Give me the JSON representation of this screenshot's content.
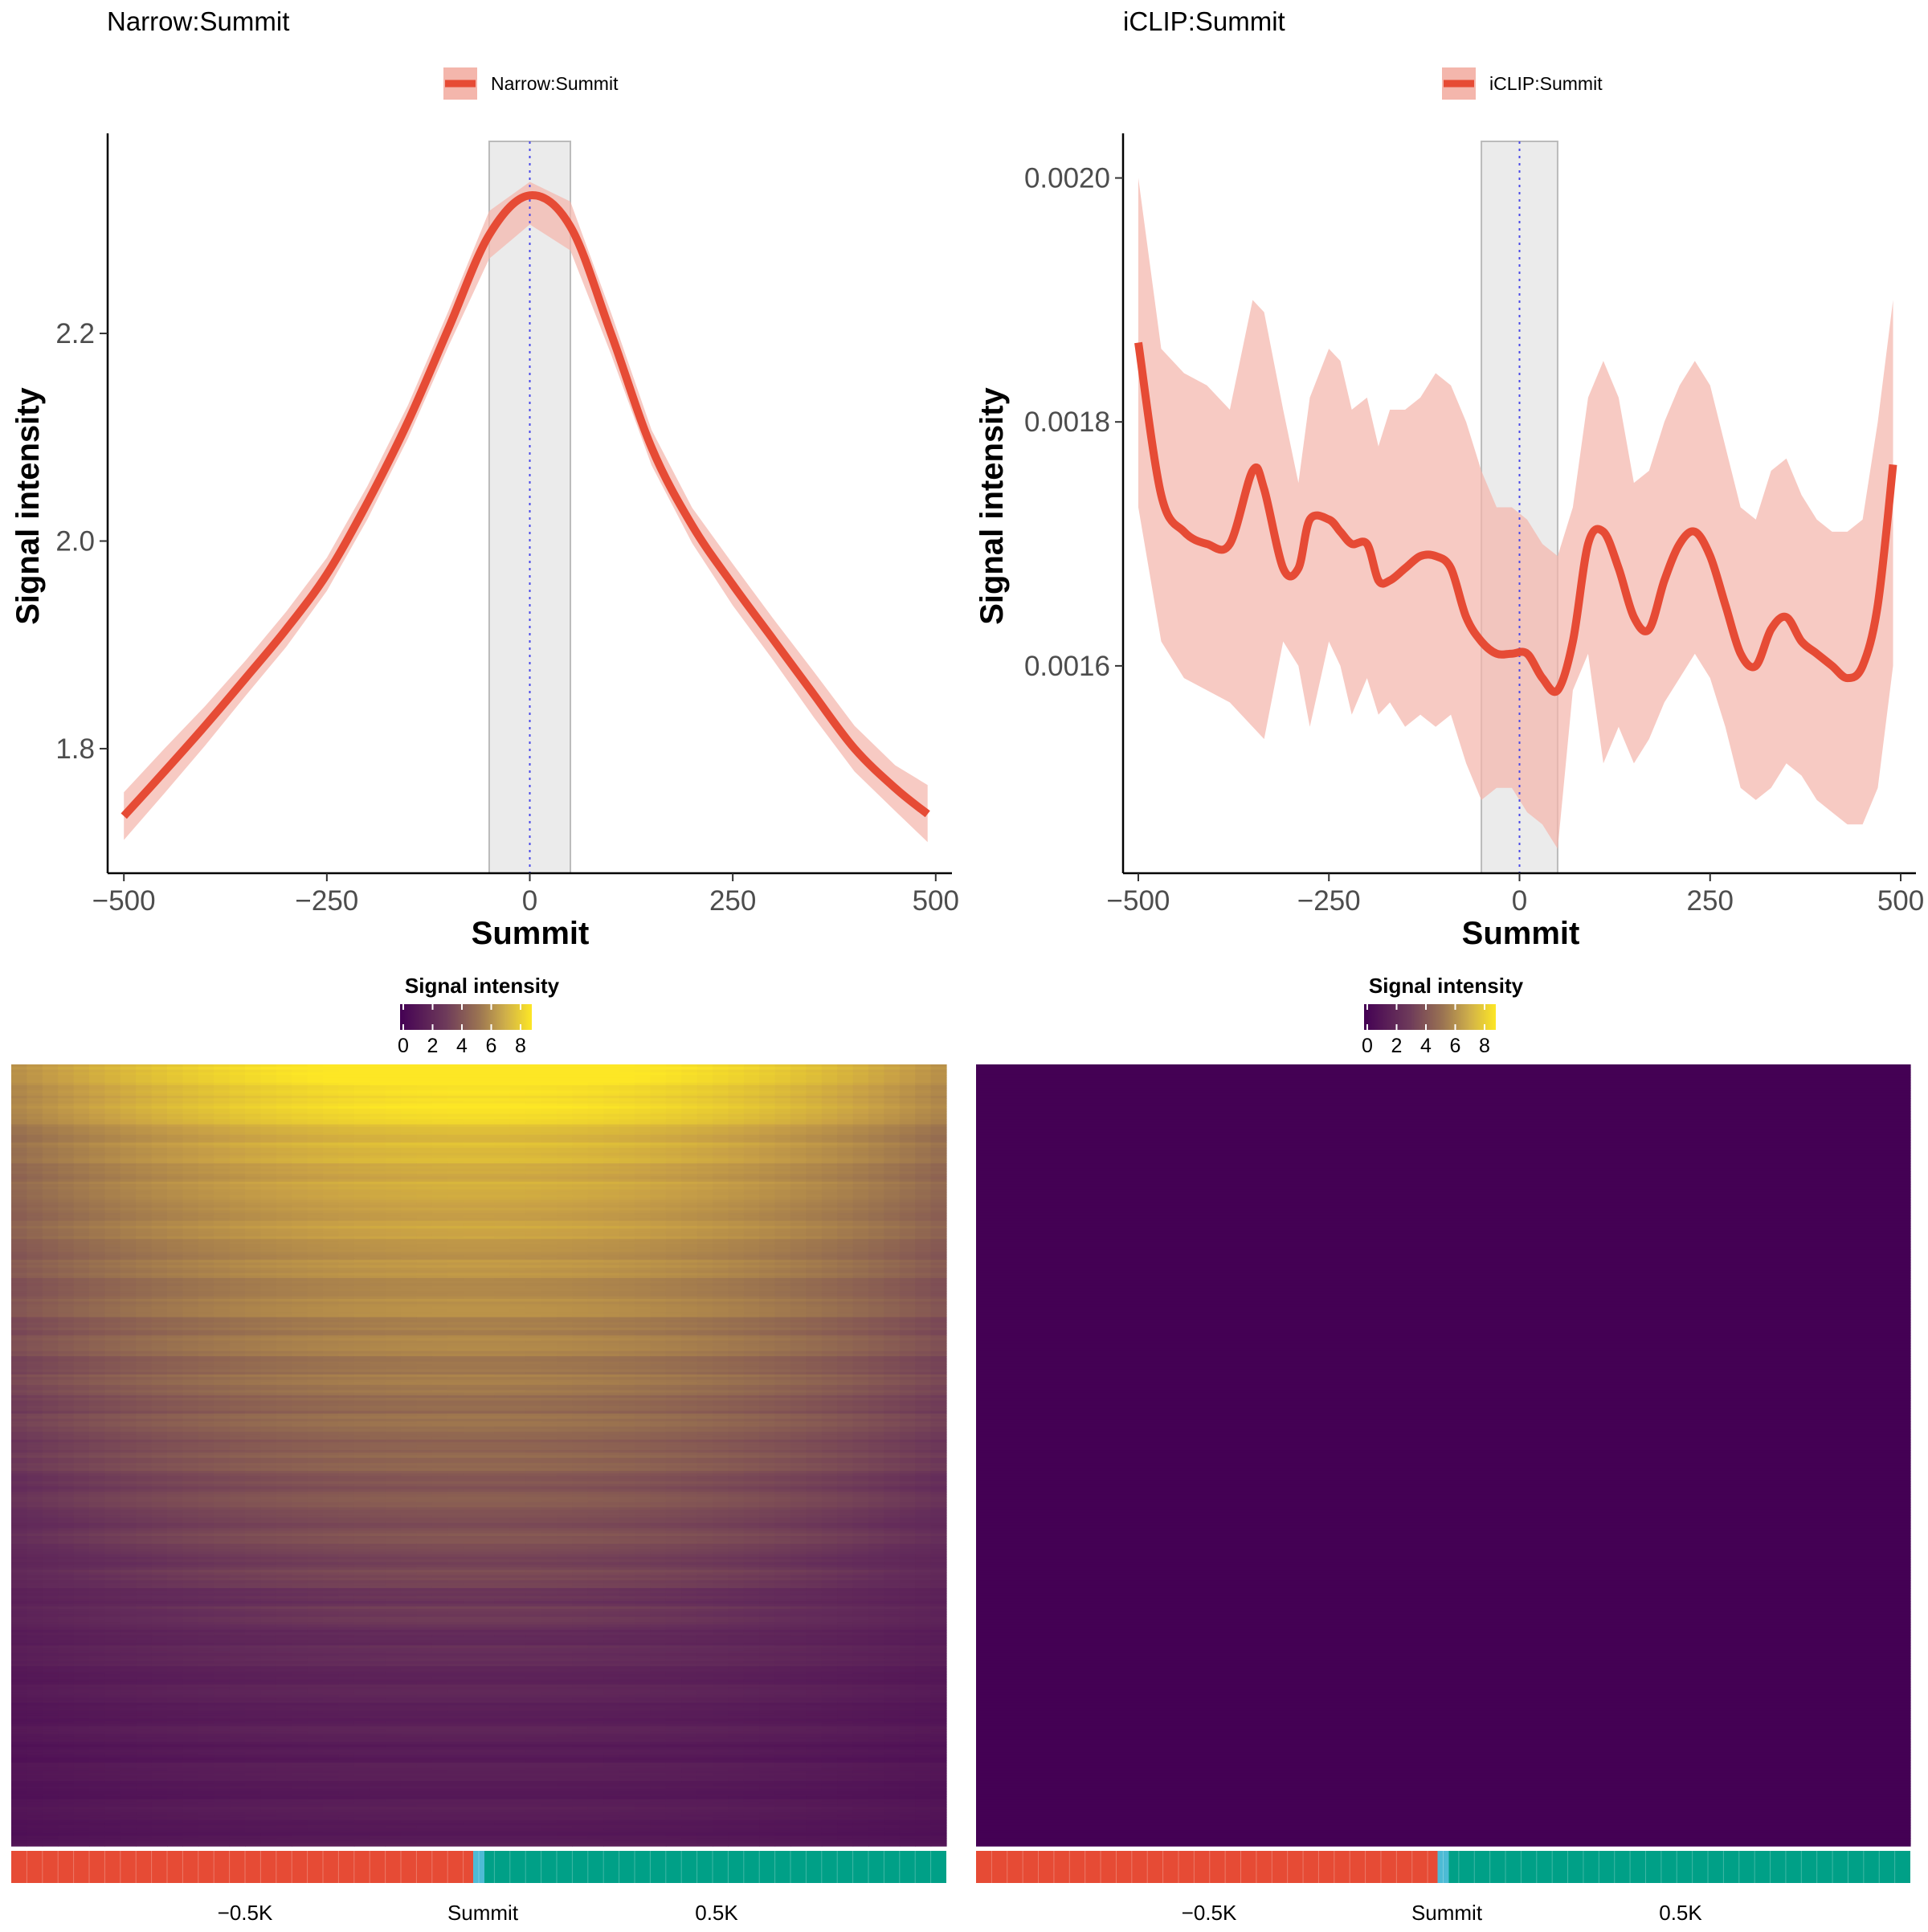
{
  "colors": {
    "line": "#E64B35",
    "ribbon": "#F4B6AC",
    "highlight": "#EBEBEB",
    "dotted": "#4A4AE8",
    "upstream": "#E64B35",
    "summit": "#4DBBD5",
    "downstream": "#00A087",
    "viridis_dark": "#440154",
    "heat_low": "#440154",
    "heat_mid": "#A07A4D",
    "heat_high": "#FDE725"
  },
  "chart_data": [
    {
      "id": "narrow",
      "type": "line",
      "title": "Narrow:Summit",
      "legend_label": "Narrow:Summit",
      "xlabel": "Summit",
      "ylabel": "Signal intensity",
      "xlim": [
        -520,
        520
      ],
      "ylim": [
        1.68,
        2.385
      ],
      "xticks": [
        -500,
        -250,
        0,
        250,
        500
      ],
      "xtick_labels": [
        "−500",
        "−250",
        "0",
        "250",
        "500"
      ],
      "yticks": [
        1.8,
        2.0,
        2.2
      ],
      "ytick_labels": [
        "1.8",
        "2.0",
        "2.2"
      ],
      "highlight_range": [
        -50,
        50
      ],
      "vline": 0,
      "x": [
        -500,
        -450,
        -400,
        -350,
        -300,
        -250,
        -200,
        -150,
        -100,
        -50,
        0,
        50,
        100,
        150,
        200,
        250,
        300,
        350,
        400,
        450,
        490
      ],
      "y": [
        1.735,
        1.778,
        1.822,
        1.868,
        1.915,
        1.968,
        2.037,
        2.115,
        2.205,
        2.295,
        2.333,
        2.303,
        2.2,
        2.09,
        2.015,
        1.958,
        1.905,
        1.852,
        1.8,
        1.762,
        1.737
      ],
      "lower": [
        1.712,
        1.757,
        1.803,
        1.851,
        1.898,
        1.952,
        2.021,
        2.099,
        2.188,
        2.272,
        2.305,
        2.28,
        2.18,
        2.073,
        1.998,
        1.938,
        1.885,
        1.83,
        1.778,
        1.74,
        1.71
      ],
      "upper": [
        1.758,
        1.8,
        1.841,
        1.885,
        1.932,
        1.984,
        2.053,
        2.131,
        2.222,
        2.318,
        2.346,
        2.327,
        2.22,
        2.107,
        2.032,
        1.978,
        1.925,
        1.874,
        1.822,
        1.784,
        1.765
      ]
    },
    {
      "id": "iclip",
      "type": "line",
      "title": "iCLIP:Summit",
      "legend_label": "iCLIP:Summit",
      "xlabel": "Summit",
      "ylabel": "Signal intensity",
      "xlim": [
        -520,
        520
      ],
      "ylim": [
        0.00143,
        0.00203
      ],
      "xticks": [
        -500,
        -250,
        0,
        250,
        500
      ],
      "xtick_labels": [
        "−500",
        "−250",
        "0",
        "250",
        "500"
      ],
      "yticks": [
        0.0016,
        0.0018,
        0.002
      ],
      "ytick_labels": [
        "0.0016",
        "0.0018",
        "0.0020"
      ],
      "highlight_range": [
        -50,
        50
      ],
      "vline": 0,
      "x": [
        -500,
        -470,
        -440,
        -410,
        -380,
        -350,
        -335,
        -310,
        -290,
        -275,
        -250,
        -235,
        -220,
        -200,
        -185,
        -170,
        -150,
        -130,
        -110,
        -90,
        -70,
        -50,
        -30,
        -10,
        10,
        30,
        50,
        70,
        90,
        110,
        130,
        150,
        170,
        190,
        210,
        230,
        250,
        270,
        290,
        310,
        330,
        350,
        370,
        390,
        410,
        430,
        450,
        470,
        490
      ],
      "y": [
        0.001865,
        0.00174,
        0.00171,
        0.0017,
        0.0017,
        0.00176,
        0.001745,
        0.00168,
        0.00168,
        0.00172,
        0.00172,
        0.00171,
        0.0017,
        0.0017,
        0.00167,
        0.00167,
        0.00168,
        0.00169,
        0.00169,
        0.00168,
        0.00164,
        0.00162,
        0.00161,
        0.00161,
        0.00161,
        0.00159,
        0.00158,
        0.00162,
        0.0017,
        0.00171,
        0.00168,
        0.00164,
        0.00163,
        0.00167,
        0.0017,
        0.00171,
        0.00169,
        0.00165,
        0.00161,
        0.0016,
        0.00163,
        0.00164,
        0.00162,
        0.00161,
        0.0016,
        0.00159,
        0.0016,
        0.00165,
        0.001765
      ],
      "lower": [
        0.00173,
        0.00162,
        0.00159,
        0.00158,
        0.00157,
        0.00155,
        0.00154,
        0.00162,
        0.0016,
        0.00155,
        0.00162,
        0.0016,
        0.00156,
        0.00159,
        0.00156,
        0.00157,
        0.00155,
        0.00156,
        0.00155,
        0.00156,
        0.00152,
        0.00149,
        0.0015,
        0.0015,
        0.00148,
        0.00147,
        0.00145,
        0.00158,
        0.00161,
        0.00152,
        0.00155,
        0.00152,
        0.00154,
        0.00157,
        0.00159,
        0.00161,
        0.00159,
        0.00155,
        0.0015,
        0.00149,
        0.0015,
        0.00152,
        0.00151,
        0.00149,
        0.00148,
        0.00147,
        0.00147,
        0.0015,
        0.0016
      ],
      "upper": [
        0.002,
        0.00186,
        0.00184,
        0.00183,
        0.00181,
        0.0019,
        0.00189,
        0.00181,
        0.00175,
        0.00182,
        0.00186,
        0.00185,
        0.00181,
        0.00182,
        0.00178,
        0.00181,
        0.00181,
        0.00182,
        0.00184,
        0.00183,
        0.0018,
        0.00176,
        0.00173,
        0.00173,
        0.00172,
        0.0017,
        0.00169,
        0.00173,
        0.00182,
        0.00185,
        0.00182,
        0.00175,
        0.00176,
        0.0018,
        0.00183,
        0.00185,
        0.00183,
        0.00178,
        0.00173,
        0.00172,
        0.00176,
        0.00177,
        0.00174,
        0.00172,
        0.00171,
        0.00171,
        0.00172,
        0.0018,
        0.0019
      ]
    },
    {
      "id": "heat_narrow",
      "type": "heatmap",
      "legend_title": "Signal intensity",
      "legend_ticks": [
        "0",
        "2",
        "4",
        "6",
        "8"
      ],
      "scale_range": [
        0,
        8
      ],
      "column_labels": [
        "−0.5K",
        "Summit",
        "0.5K"
      ],
      "summary": "rows sorted by signal; values highest near summit and decay toward flanks",
      "row_values": [
        8.3,
        7.8,
        6.6,
        6.3,
        6.1,
        5.6,
        5.3,
        5.0,
        4.6,
        4.3,
        3.9,
        3.6,
        3.3,
        2.8,
        2.4,
        2.0,
        1.7,
        1.6,
        1.5,
        1.4
      ]
    },
    {
      "id": "heat_iclip",
      "type": "heatmap",
      "legend_title": "Signal intensity",
      "legend_ticks": [
        "0",
        "2",
        "4",
        "6",
        "8"
      ],
      "scale_range": [
        0,
        8
      ],
      "column_labels": [
        "−0.5K",
        "Summit",
        "0.5K"
      ],
      "summary": "all values near 0",
      "row_values": [
        0.0
      ]
    }
  ]
}
